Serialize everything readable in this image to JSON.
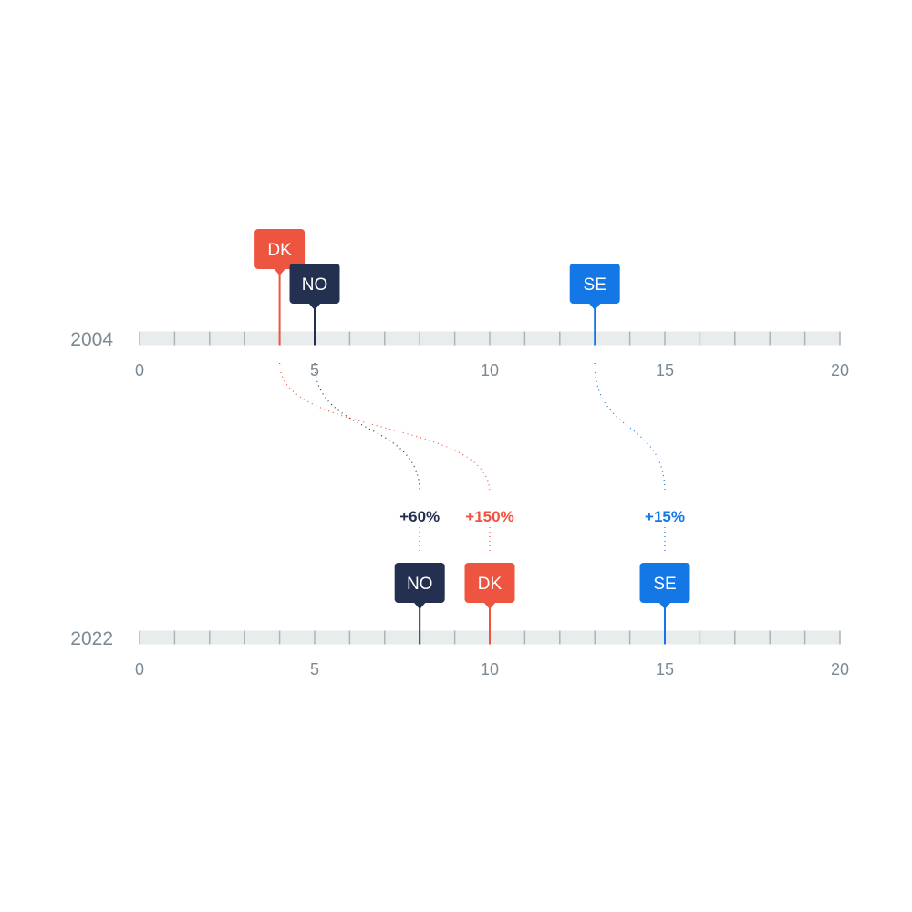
{
  "colors": {
    "track": "#e8eced",
    "track_tick": "#aab4ba",
    "axis_text": "#7d8a93",
    "DK": "#ee5540",
    "NO": "#24304f",
    "SE": "#1477e6"
  },
  "chart_data": {
    "type": "dot-timeline",
    "title": "",
    "xlim": [
      0,
      20
    ],
    "tick_values": [
      0,
      5,
      10,
      15,
      20
    ],
    "tick_labels": [
      "0",
      "5",
      "10",
      "15",
      "20"
    ],
    "minor_tick_step": 1,
    "rows": [
      {
        "year": "2004",
        "points": [
          {
            "country": "DK",
            "value": 4
          },
          {
            "country": "NO",
            "value": 5
          },
          {
            "country": "SE",
            "value": 13
          }
        ]
      },
      {
        "year": "2022",
        "points": [
          {
            "country": "NO",
            "value": 8
          },
          {
            "country": "DK",
            "value": 10
          },
          {
            "country": "SE",
            "value": 15
          }
        ]
      }
    ],
    "changes": [
      {
        "country": "NO",
        "label": "+60%"
      },
      {
        "country": "DK",
        "label": "+150%"
      },
      {
        "country": "SE",
        "label": "+15%"
      }
    ]
  }
}
